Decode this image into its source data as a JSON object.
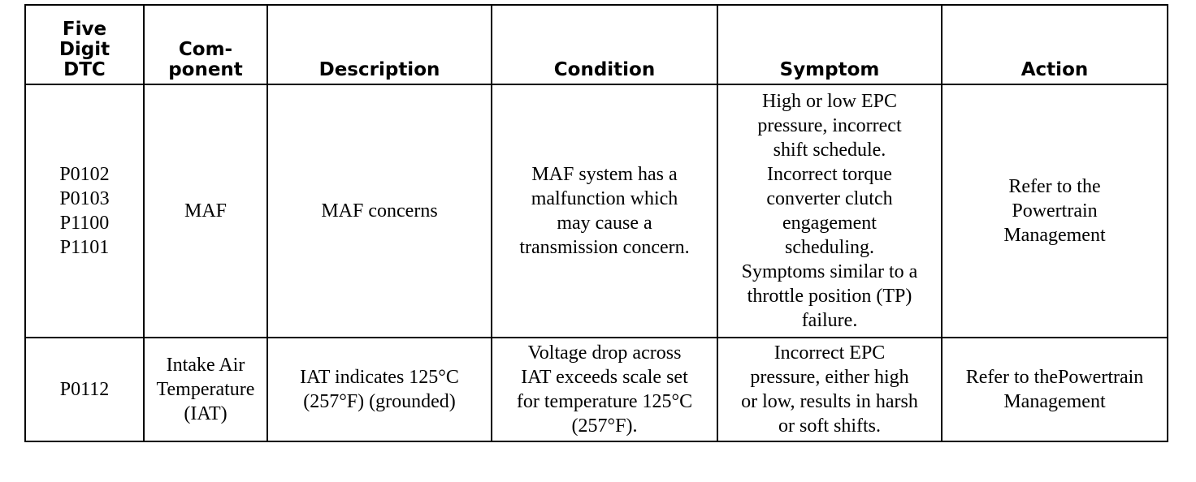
{
  "headers": [
    "Five\nDigit\nDTC",
    "Com-\nponent",
    "Description",
    "Condition",
    "Symptom",
    "Action"
  ],
  "rows": [
    {
      "dtc": "P0102\nP0103\nP1100\nP1101",
      "component": "MAF",
      "description": "MAF concerns",
      "condition": "MAF system has a\nmalfunction which\nmay cause a\ntransmission concern.",
      "symptom": "High or low EPC\npressure, incorrect\nshift schedule.\nIncorrect torque\nconverter clutch\nengagement\nscheduling.\nSymptoms similar to a\nthrottle position (TP)\nfailure.",
      "action": "Refer to the\nPowertrain\nManagement"
    },
    {
      "dtc": "P0112",
      "component": "Intake Air\nTemperature\n(IAT)",
      "description": "IAT indicates 125°C\n(257°F) (grounded)",
      "condition": "Voltage drop across\nIAT exceeds scale set\nfor temperature 125°C\n(257°F).",
      "symptom": "Incorrect EPC\npressure, either high\nor low, results in harsh\nor soft shifts.",
      "action": "Refer to thePowertrain\nManagement"
    }
  ]
}
